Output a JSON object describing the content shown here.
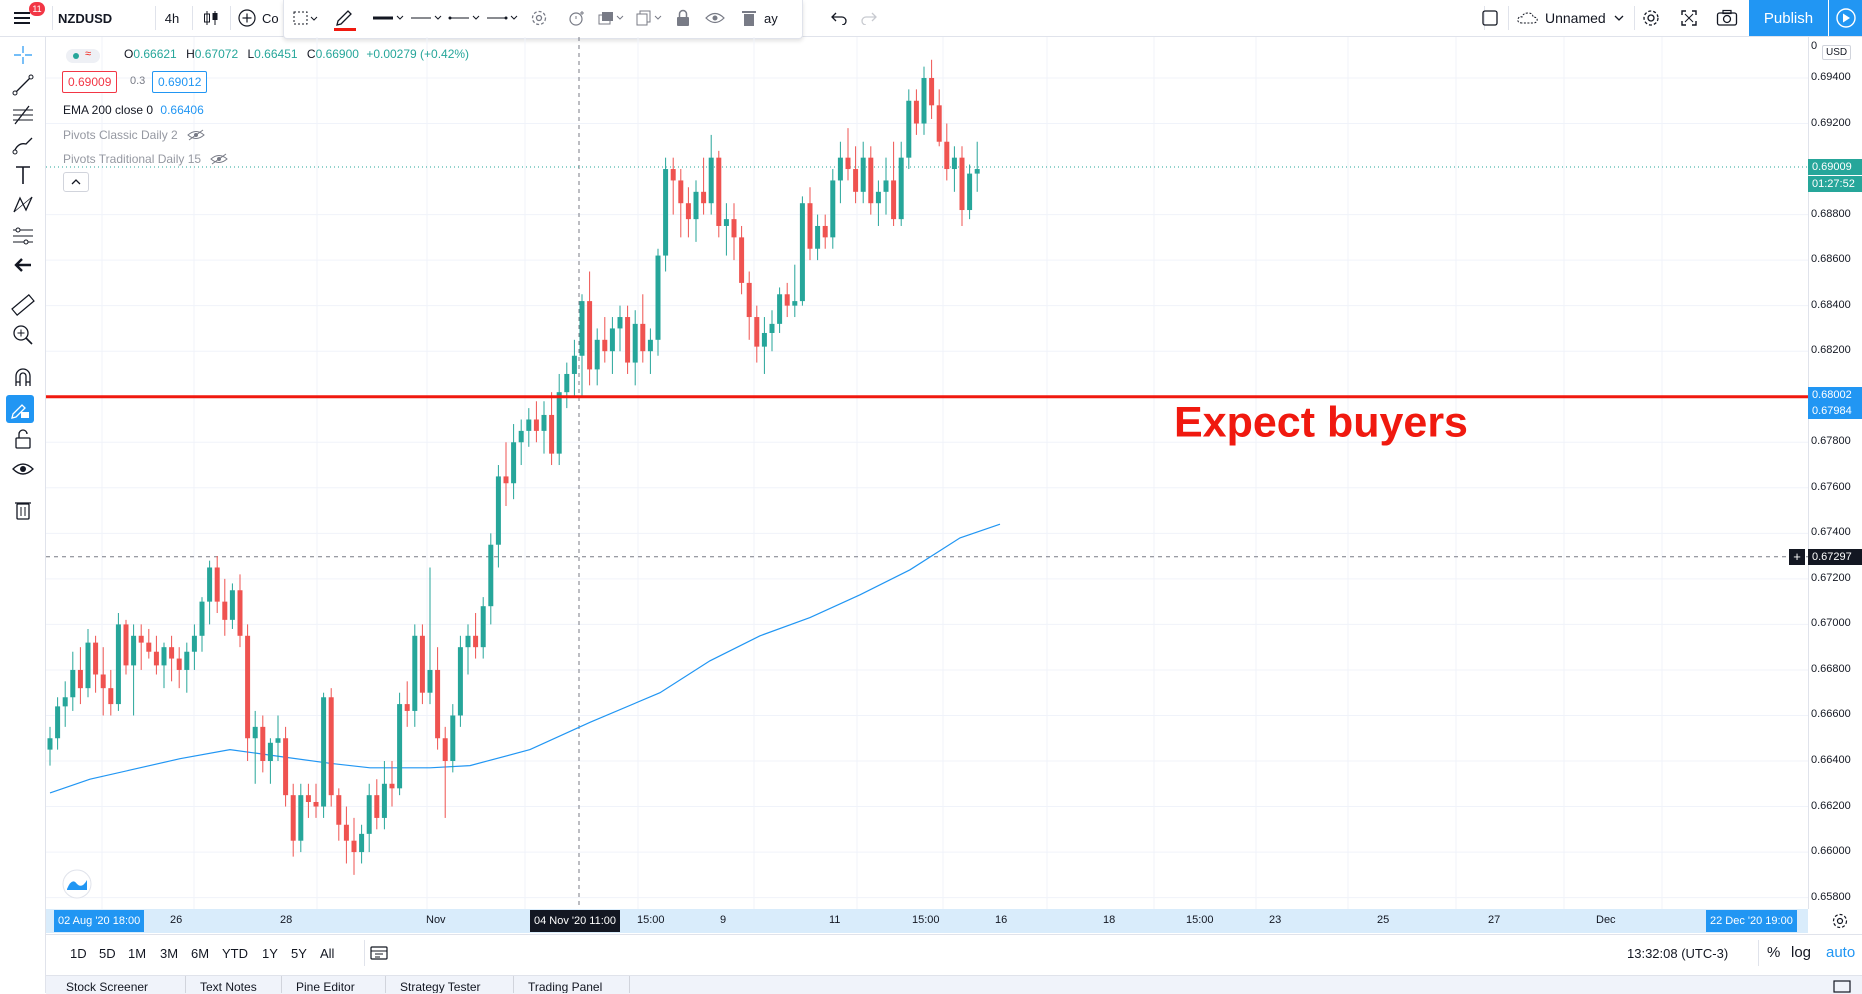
{
  "header": {
    "menu_badge": "11",
    "symbol": "NZDUSD",
    "interval": "4h",
    "compare_label": "Co",
    "replay_label": "ay",
    "layout_name": "Unnamed",
    "publish_label": "Publish",
    "accent_color": "#2196f3"
  },
  "legend": {
    "ohlc": {
      "o_label": "O",
      "o_value": "0.66621",
      "h_label": "H",
      "h_value": "0.67072",
      "l_label": "L",
      "l_value": "0.66451",
      "c_label": "C",
      "c_value": "0.66900",
      "change": "+0.00279 (+0.42%)"
    },
    "sell_price": "0.69009",
    "spread": "0.3",
    "buy_price": "0.69012",
    "indicators": [
      {
        "name": "EMA 200 close 0",
        "value": "0.66406"
      },
      {
        "name": "Pivots Classic Daily 2",
        "value": ""
      },
      {
        "name": "Pivots Traditional Daily 15",
        "value": ""
      }
    ]
  },
  "annotation": {
    "text": "Expect buyers",
    "color": "#f0190f"
  },
  "price_scale": {
    "currency": "USD",
    "labels": [
      "0.69400",
      "0.69200",
      "0.68800",
      "0.68600",
      "0.68400",
      "0.68200",
      "0.67800",
      "0.67600",
      "0.67400",
      "0.67200",
      "0.67000",
      "0.66800",
      "0.66600",
      "0.66400",
      "0.66200",
      "0.66000",
      "0.65800"
    ],
    "current_price": "0.69009",
    "countdown": "01:27:52",
    "line_price_1": "0.68002",
    "line_price_2": "0.67984",
    "crosshair_price": "0.67297"
  },
  "time_axis": {
    "start_tag": "02 Aug '20   18:00",
    "labels": [
      "26",
      "28",
      "Nov",
      "15:00",
      "9",
      "11",
      "15:00",
      "16",
      "18",
      "15:00",
      "23",
      "25",
      "27",
      "Dec"
    ],
    "crosshair_tag": "04 Nov '20   11:00",
    "end_tag": "22 Dec '20   19:00"
  },
  "bottom": {
    "ranges": [
      "1D",
      "5D",
      "1M",
      "3M",
      "6M",
      "YTD",
      "1Y",
      "5Y",
      "All"
    ],
    "clock": "13:32:08 (UTC-3)",
    "percent": "%",
    "log": "log",
    "auto": "auto"
  },
  "bottom_tabs": [
    "Stock Screener",
    "Text Notes",
    "Pine Editor",
    "Strategy Tester",
    "Trading Panel"
  ],
  "chart_data": {
    "type": "candlestick",
    "symbol": "NZDUSD",
    "interval": "4h",
    "ylim": [
      0.6575,
      0.6958
    ],
    "up_color": "#26a69a",
    "down_color": "#ef5350",
    "candles": [
      [
        0.6645,
        0.6655,
        0.6638,
        0.665
      ],
      [
        0.665,
        0.6668,
        0.6645,
        0.6664
      ],
      [
        0.6664,
        0.6675,
        0.6655,
        0.6668
      ],
      [
        0.6668,
        0.6688,
        0.6662,
        0.668
      ],
      [
        0.668,
        0.669,
        0.6665,
        0.6672
      ],
      [
        0.6672,
        0.6698,
        0.6668,
        0.6692
      ],
      [
        0.6692,
        0.6695,
        0.667,
        0.6678
      ],
      [
        0.6678,
        0.669,
        0.666,
        0.6672
      ],
      [
        0.6672,
        0.668,
        0.666,
        0.6665
      ],
      [
        0.6665,
        0.6705,
        0.6662,
        0.67
      ],
      [
        0.67,
        0.6702,
        0.6678,
        0.6682
      ],
      [
        0.6682,
        0.67,
        0.666,
        0.6695
      ],
      [
        0.6695,
        0.67,
        0.668,
        0.6692
      ],
      [
        0.6692,
        0.6698,
        0.6685,
        0.6688
      ],
      [
        0.6688,
        0.6695,
        0.6678,
        0.6682
      ],
      [
        0.6682,
        0.6692,
        0.6672,
        0.669
      ],
      [
        0.669,
        0.6695,
        0.6675,
        0.6685
      ],
      [
        0.6685,
        0.669,
        0.6672,
        0.668
      ],
      [
        0.668,
        0.6692,
        0.667,
        0.6688
      ],
      [
        0.6688,
        0.67,
        0.668,
        0.6695
      ],
      [
        0.6695,
        0.6712,
        0.6688,
        0.671
      ],
      [
        0.671,
        0.6728,
        0.67,
        0.6725
      ],
      [
        0.6725,
        0.673,
        0.6705,
        0.671
      ],
      [
        0.671,
        0.672,
        0.6695,
        0.6702
      ],
      [
        0.6702,
        0.6718,
        0.6698,
        0.6715
      ],
      [
        0.6715,
        0.6722,
        0.669,
        0.6695
      ],
      [
        0.6695,
        0.67,
        0.664,
        0.665
      ],
      [
        0.665,
        0.6662,
        0.663,
        0.6655
      ],
      [
        0.6655,
        0.666,
        0.6635,
        0.664
      ],
      [
        0.664,
        0.665,
        0.663,
        0.6648
      ],
      [
        0.6648,
        0.666,
        0.664,
        0.665
      ],
      [
        0.665,
        0.6655,
        0.662,
        0.6625
      ],
      [
        0.6625,
        0.663,
        0.6598,
        0.6605
      ],
      [
        0.6605,
        0.663,
        0.66,
        0.6625
      ],
      [
        0.6625,
        0.663,
        0.6615,
        0.6622
      ],
      [
        0.6622,
        0.663,
        0.6615,
        0.662
      ],
      [
        0.662,
        0.667,
        0.6615,
        0.6668
      ],
      [
        0.6668,
        0.6672,
        0.662,
        0.6625
      ],
      [
        0.6625,
        0.6628,
        0.6605,
        0.6612
      ],
      [
        0.6612,
        0.662,
        0.6595,
        0.6605
      ],
      [
        0.6605,
        0.6615,
        0.659,
        0.66
      ],
      [
        0.66,
        0.6612,
        0.6595,
        0.6608
      ],
      [
        0.6608,
        0.663,
        0.66,
        0.6625
      ],
      [
        0.6625,
        0.6632,
        0.661,
        0.6615
      ],
      [
        0.6615,
        0.664,
        0.661,
        0.663
      ],
      [
        0.663,
        0.664,
        0.662,
        0.6628
      ],
      [
        0.6628,
        0.667,
        0.6625,
        0.6665
      ],
      [
        0.6665,
        0.6675,
        0.6655,
        0.6662
      ],
      [
        0.6662,
        0.67,
        0.6655,
        0.6695
      ],
      [
        0.6695,
        0.67,
        0.6665,
        0.667
      ],
      [
        0.667,
        0.6725,
        0.6665,
        0.668
      ],
      [
        0.668,
        0.669,
        0.6645,
        0.665
      ],
      [
        0.665,
        0.6655,
        0.6615,
        0.664
      ],
      [
        0.664,
        0.6665,
        0.6635,
        0.666
      ],
      [
        0.666,
        0.6695,
        0.6655,
        0.669
      ],
      [
        0.669,
        0.67,
        0.6678,
        0.6695
      ],
      [
        0.6695,
        0.6705,
        0.6685,
        0.669
      ],
      [
        0.669,
        0.6712,
        0.6685,
        0.6708
      ],
      [
        0.6708,
        0.674,
        0.67,
        0.6735
      ],
      [
        0.6735,
        0.677,
        0.6725,
        0.6765
      ],
      [
        0.6765,
        0.678,
        0.6752,
        0.6762
      ],
      [
        0.6762,
        0.6788,
        0.6755,
        0.678
      ],
      [
        0.678,
        0.679,
        0.677,
        0.6785
      ],
      [
        0.6785,
        0.6795,
        0.6778,
        0.679
      ],
      [
        0.679,
        0.6798,
        0.678,
        0.6785
      ],
      [
        0.6785,
        0.6798,
        0.6775,
        0.6792
      ],
      [
        0.6792,
        0.6802,
        0.677,
        0.6775
      ],
      [
        0.6775,
        0.681,
        0.677,
        0.6802
      ],
      [
        0.6802,
        0.6815,
        0.6795,
        0.681
      ],
      [
        0.681,
        0.6825,
        0.68,
        0.6818
      ],
      [
        0.6818,
        0.6845,
        0.68,
        0.6842
      ],
      [
        0.6842,
        0.6855,
        0.6805,
        0.6812
      ],
      [
        0.6812,
        0.683,
        0.6805,
        0.6825
      ],
      [
        0.6825,
        0.6835,
        0.6815,
        0.682
      ],
      [
        0.682,
        0.6835,
        0.681,
        0.683
      ],
      [
        0.683,
        0.684,
        0.682,
        0.6835
      ],
      [
        0.6835,
        0.684,
        0.681,
        0.6815
      ],
      [
        0.6815,
        0.6838,
        0.6805,
        0.6832
      ],
      [
        0.6832,
        0.6845,
        0.6815,
        0.682
      ],
      [
        0.682,
        0.683,
        0.681,
        0.6825
      ],
      [
        0.6825,
        0.6865,
        0.6818,
        0.6862
      ],
      [
        0.6862,
        0.6905,
        0.6855,
        0.69
      ],
      [
        0.69,
        0.6905,
        0.688,
        0.6895
      ],
      [
        0.6895,
        0.69,
        0.687,
        0.6885
      ],
      [
        0.6885,
        0.6892,
        0.687,
        0.6878
      ],
      [
        0.6878,
        0.6895,
        0.6868,
        0.689
      ],
      [
        0.689,
        0.6905,
        0.688,
        0.6885
      ],
      [
        0.6885,
        0.6915,
        0.688,
        0.6905
      ],
      [
        0.6905,
        0.6908,
        0.687,
        0.6875
      ],
      [
        0.6875,
        0.6885,
        0.6862,
        0.6878
      ],
      [
        0.6878,
        0.6885,
        0.686,
        0.687
      ],
      [
        0.687,
        0.6875,
        0.6845,
        0.685
      ],
      [
        0.685,
        0.6855,
        0.6825,
        0.6835
      ],
      [
        0.6835,
        0.684,
        0.6815,
        0.6822
      ],
      [
        0.6822,
        0.6835,
        0.681,
        0.6828
      ],
      [
        0.6828,
        0.6838,
        0.682,
        0.6832
      ],
      [
        0.6832,
        0.6848,
        0.6828,
        0.6845
      ],
      [
        0.6845,
        0.685,
        0.6835,
        0.684
      ],
      [
        0.684,
        0.6858,
        0.6835,
        0.6842
      ],
      [
        0.6842,
        0.6888,
        0.684,
        0.6885
      ],
      [
        0.6885,
        0.6892,
        0.686,
        0.6865
      ],
      [
        0.6865,
        0.688,
        0.686,
        0.6875
      ],
      [
        0.6875,
        0.688,
        0.6865,
        0.687
      ],
      [
        0.687,
        0.69,
        0.6865,
        0.6895
      ],
      [
        0.6895,
        0.6912,
        0.6885,
        0.6905
      ],
      [
        0.6905,
        0.6918,
        0.6895,
        0.69
      ],
      [
        0.69,
        0.691,
        0.6885,
        0.689
      ],
      [
        0.689,
        0.6912,
        0.6885,
        0.6905
      ],
      [
        0.6905,
        0.691,
        0.688,
        0.6885
      ],
      [
        0.6885,
        0.6895,
        0.6875,
        0.689
      ],
      [
        0.689,
        0.6905,
        0.688,
        0.6895
      ],
      [
        0.6895,
        0.6912,
        0.6875,
        0.6878
      ],
      [
        0.6878,
        0.6912,
        0.6875,
        0.6905
      ],
      [
        0.6905,
        0.6935,
        0.69,
        0.693
      ],
      [
        0.693,
        0.6935,
        0.6915,
        0.692
      ],
      [
        0.692,
        0.6945,
        0.6915,
        0.694
      ],
      [
        0.694,
        0.6948,
        0.6922,
        0.6928
      ],
      [
        0.6928,
        0.6935,
        0.691,
        0.6912
      ],
      [
        0.6912,
        0.692,
        0.6895,
        0.69
      ],
      [
        0.69,
        0.691,
        0.689,
        0.6905
      ],
      [
        0.6905,
        0.691,
        0.6875,
        0.6882
      ],
      [
        0.6882,
        0.6902,
        0.6878,
        0.6898
      ],
      [
        0.6898,
        0.6912,
        0.689,
        0.69
      ]
    ],
    "ema200": [
      [
        0,
        0.6626
      ],
      [
        40,
        0.6632
      ],
      [
        80,
        0.6636
      ],
      [
        130,
        0.6641
      ],
      [
        180,
        0.6645
      ],
      [
        230,
        0.6642
      ],
      [
        280,
        0.6639
      ],
      [
        320,
        0.6637
      ],
      [
        380,
        0.6637
      ],
      [
        420,
        0.6638
      ],
      [
        480,
        0.6645
      ],
      [
        540,
        0.6657
      ],
      [
        610,
        0.667
      ],
      [
        660,
        0.6684
      ],
      [
        710,
        0.6695
      ],
      [
        760,
        0.6703
      ],
      [
        810,
        0.6713
      ],
      [
        860,
        0.6724
      ],
      [
        910,
        0.6738
      ],
      [
        950,
        0.6744
      ]
    ],
    "horizontal_lines": [
      {
        "price": 0.68,
        "color": "#f0190f"
      }
    ],
    "crosshair": {
      "price": 0.67297
    }
  }
}
